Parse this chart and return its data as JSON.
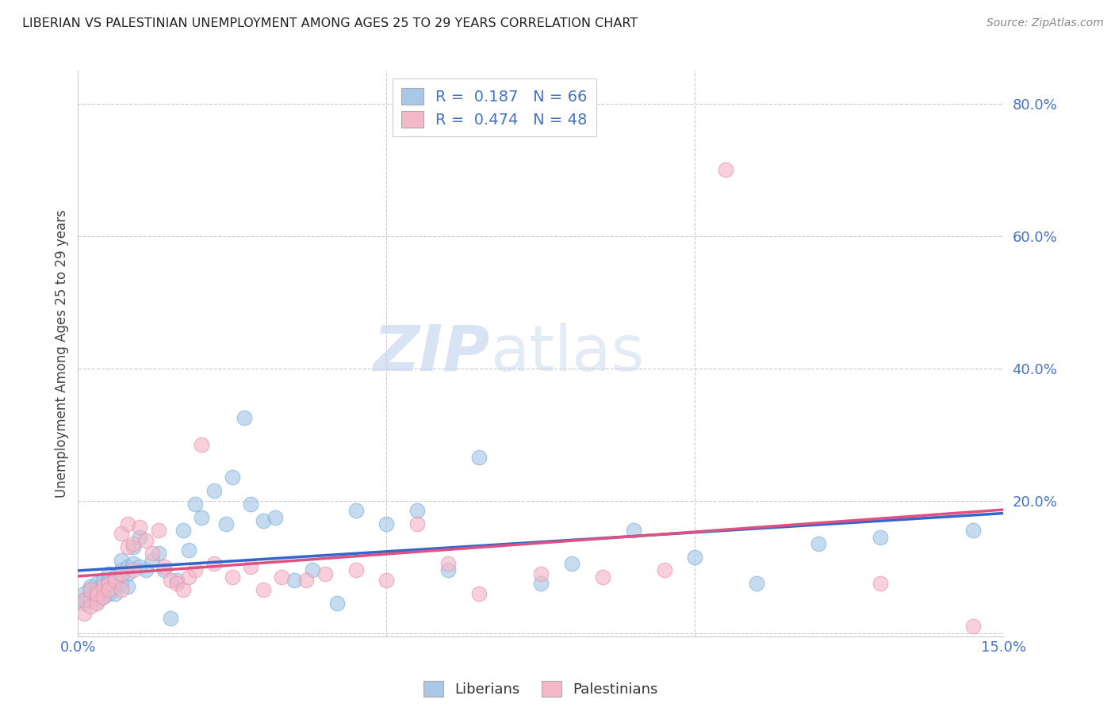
{
  "title": "LIBERIAN VS PALESTINIAN UNEMPLOYMENT AMONG AGES 25 TO 29 YEARS CORRELATION CHART",
  "source": "Source: ZipAtlas.com",
  "ylabel": "Unemployment Among Ages 25 to 29 years",
  "xlim": [
    0.0,
    0.15
  ],
  "ylim": [
    -0.005,
    0.85
  ],
  "xticks": [
    0.0,
    0.05,
    0.1,
    0.15
  ],
  "yticks": [
    0.2,
    0.4,
    0.6,
    0.8
  ],
  "liberian_color": "#a8c8e8",
  "liberian_edge_color": "#7aafd4",
  "palestinian_color": "#f4b8c8",
  "palestinian_edge_color": "#e890a8",
  "liberian_line_color": "#3366cc",
  "palestinian_line_color": "#e05080",
  "R_liberian": 0.187,
  "N_liberian": 66,
  "R_palestinian": 0.474,
  "N_palestinian": 48,
  "background_color": "#ffffff",
  "watermark_zip": "ZIP",
  "watermark_atlas": "atlas",
  "tick_color": "#4472c4",
  "liberian_label": "Liberians",
  "palestinian_label": "Palestinians",
  "liberian_x": [
    0.001,
    0.001,
    0.001,
    0.002,
    0.002,
    0.002,
    0.002,
    0.003,
    0.003,
    0.003,
    0.003,
    0.003,
    0.004,
    0.004,
    0.004,
    0.004,
    0.005,
    0.005,
    0.005,
    0.005,
    0.006,
    0.006,
    0.006,
    0.007,
    0.007,
    0.007,
    0.008,
    0.008,
    0.008,
    0.009,
    0.009,
    0.01,
    0.01,
    0.011,
    0.012,
    0.013,
    0.014,
    0.015,
    0.016,
    0.017,
    0.018,
    0.019,
    0.02,
    0.022,
    0.024,
    0.025,
    0.027,
    0.028,
    0.03,
    0.032,
    0.035,
    0.038,
    0.042,
    0.045,
    0.05,
    0.055,
    0.06,
    0.065,
    0.075,
    0.08,
    0.09,
    0.1,
    0.11,
    0.12,
    0.13,
    0.145
  ],
  "liberian_y": [
    0.05,
    0.06,
    0.045,
    0.055,
    0.065,
    0.05,
    0.07,
    0.055,
    0.06,
    0.048,
    0.065,
    0.075,
    0.06,
    0.07,
    0.08,
    0.055,
    0.075,
    0.09,
    0.06,
    0.08,
    0.085,
    0.07,
    0.06,
    0.095,
    0.11,
    0.075,
    0.09,
    0.1,
    0.07,
    0.105,
    0.13,
    0.1,
    0.145,
    0.095,
    0.11,
    0.12,
    0.095,
    0.022,
    0.08,
    0.155,
    0.125,
    0.195,
    0.175,
    0.215,
    0.165,
    0.235,
    0.325,
    0.195,
    0.17,
    0.175,
    0.08,
    0.095,
    0.045,
    0.185,
    0.165,
    0.185,
    0.095,
    0.265,
    0.075,
    0.105,
    0.155,
    0.115,
    0.075,
    0.135,
    0.145,
    0.155
  ],
  "palestinian_x": [
    0.001,
    0.001,
    0.002,
    0.002,
    0.003,
    0.003,
    0.003,
    0.004,
    0.004,
    0.005,
    0.005,
    0.006,
    0.007,
    0.007,
    0.007,
    0.008,
    0.008,
    0.009,
    0.009,
    0.01,
    0.011,
    0.012,
    0.013,
    0.014,
    0.015,
    0.016,
    0.017,
    0.018,
    0.019,
    0.02,
    0.022,
    0.025,
    0.028,
    0.03,
    0.033,
    0.037,
    0.04,
    0.045,
    0.05,
    0.055,
    0.06,
    0.065,
    0.075,
    0.085,
    0.095,
    0.105,
    0.13,
    0.145
  ],
  "palestinian_y": [
    0.03,
    0.05,
    0.04,
    0.065,
    0.055,
    0.045,
    0.06,
    0.07,
    0.055,
    0.075,
    0.065,
    0.08,
    0.09,
    0.065,
    0.15,
    0.13,
    0.165,
    0.095,
    0.135,
    0.16,
    0.14,
    0.12,
    0.155,
    0.1,
    0.08,
    0.075,
    0.065,
    0.085,
    0.095,
    0.285,
    0.105,
    0.085,
    0.1,
    0.065,
    0.085,
    0.08,
    0.09,
    0.095,
    0.08,
    0.165,
    0.105,
    0.06,
    0.09,
    0.085,
    0.095,
    0.7,
    0.075,
    0.01
  ]
}
